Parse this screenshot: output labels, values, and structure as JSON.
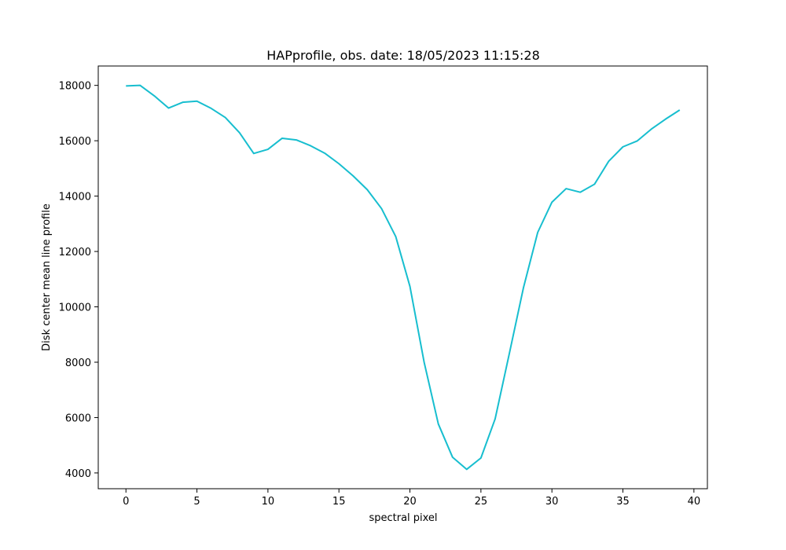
{
  "chart_data": {
    "type": "line",
    "title": "HAPprofile, obs. date: 18/05/2023 11:15:28",
    "xlabel": "spectral pixel",
    "ylabel": "Disk center mean line profile",
    "xlim": [
      -1.95,
      40.95
    ],
    "ylim": [
      3430,
      18700
    ],
    "xticks": [
      0,
      5,
      10,
      15,
      20,
      25,
      30,
      35,
      40
    ],
    "xtick_labels": [
      "0",
      "5",
      "10",
      "15",
      "20",
      "25",
      "30",
      "35",
      "40"
    ],
    "yticks": [
      4000,
      6000,
      8000,
      10000,
      12000,
      14000,
      16000,
      18000
    ],
    "ytick_labels": [
      "4000",
      "6000",
      "8000",
      "10000",
      "12000",
      "14000",
      "16000",
      "18000"
    ],
    "grid": false,
    "series": [
      {
        "color": "#17becf",
        "x": [
          0,
          1,
          2,
          3,
          4,
          5,
          6,
          7,
          8,
          9,
          10,
          11,
          12,
          13,
          14,
          15,
          16,
          17,
          18,
          19,
          20,
          21,
          22,
          23,
          24,
          25,
          26,
          27,
          28,
          29,
          30,
          31,
          32,
          33,
          34,
          35,
          36,
          37,
          38,
          39
        ],
        "y": [
          17980,
          18000,
          17620,
          17180,
          17390,
          17430,
          17170,
          16840,
          16290,
          15540,
          15690,
          16090,
          16030,
          15820,
          15550,
          15170,
          14730,
          14230,
          13550,
          12540,
          10740,
          8000,
          5770,
          4570,
          4130,
          4540,
          5950,
          8310,
          10700,
          12690,
          13780,
          14270,
          14140,
          14430,
          15260,
          15780,
          15990,
          16420,
          16780,
          17110
        ]
      }
    ]
  }
}
